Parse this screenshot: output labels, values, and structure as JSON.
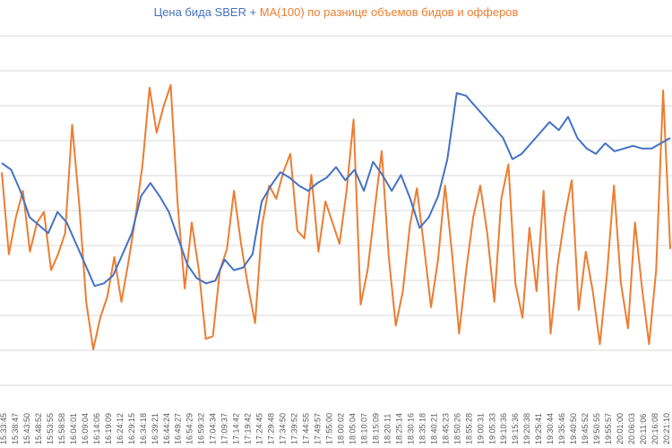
{
  "colors": {
    "bid_price": "#4472C4",
    "ma": "#ED7D31",
    "grid": "#D9D9D9",
    "axis_text": "#595959"
  },
  "chart_data": {
    "type": "line",
    "title_part1": "Цена бида SBER",
    "title_sep": " + ",
    "title_part2": "MA(100) по разнице объемов бидов и офферов",
    "gridlines": true,
    "legend": "none",
    "x_ticks": [
      "15:33:45",
      "15:38:47",
      "15:43:50",
      "15:48:52",
      "15:53:55",
      "15:58:58",
      "16:04:01",
      "16:09:04",
      "16:14:06",
      "16:19:09",
      "16:24:12",
      "16:29:15",
      "16:34:18",
      "16:39:21",
      "16:44:24",
      "16:49:27",
      "16:54:29",
      "16:59:32",
      "17:04:34",
      "17:09:37",
      "17:14:42",
      "17:19:42",
      "17:24:45",
      "17:29:48",
      "17:34:50",
      "17:39:52",
      "17:44:55",
      "17:49:57",
      "17:55:00",
      "18:00:02",
      "18:05:04",
      "18:10:07",
      "18:15:09",
      "18:20:11",
      "18:25:14",
      "18:30:16",
      "18:35:18",
      "18:40:21",
      "18:45:23",
      "18:50:26",
      "18:55:28",
      "19:00:31",
      "19:05:33",
      "19:10:36",
      "19:15:36",
      "19:20:38",
      "19:25:41",
      "19:30:44",
      "19:35:46",
      "19:40:50",
      "19:45:52",
      "19:50:55",
      "19:55:57",
      "20:01:00",
      "20:06:03",
      "20:11:06",
      "20:16:08",
      "20:21:10"
    ],
    "series": [
      {
        "color_key": "bid_price",
        "values": [
          0.705,
          0.68,
          0.6,
          0.5,
          0.47,
          0.44,
          0.52,
          0.48,
          0.4,
          0.32,
          0.24,
          0.25,
          0.28,
          0.36,
          0.44,
          0.58,
          0.63,
          0.58,
          0.52,
          0.42,
          0.32,
          0.27,
          0.25,
          0.26,
          0.34,
          0.3,
          0.31,
          0.36,
          0.56,
          0.62,
          0.67,
          0.65,
          0.62,
          0.6,
          0.63,
          0.65,
          0.69,
          0.64,
          0.68,
          0.6,
          0.71,
          0.66,
          0.6,
          0.66,
          0.57,
          0.46,
          0.5,
          0.58,
          0.72,
          0.97,
          0.96,
          0.92,
          0.88,
          0.84,
          0.8,
          0.72,
          0.74,
          0.78,
          0.82,
          0.86,
          0.83,
          0.88,
          0.8,
          0.76,
          0.74,
          0.78,
          0.75,
          0.76,
          0.77,
          0.76,
          0.76,
          0.78,
          0.8
        ]
      },
      {
        "color_key": "ma",
        "values": [
          0.67,
          0.36,
          0.5,
          0.6,
          0.37,
          0.48,
          0.52,
          0.3,
          0.36,
          0.44,
          0.85,
          0.55,
          0.18,
          0.0,
          0.12,
          0.2,
          0.35,
          0.18,
          0.33,
          0.5,
          0.7,
          0.99,
          0.82,
          0.92,
          1.0,
          0.55,
          0.23,
          0.48,
          0.3,
          0.04,
          0.05,
          0.3,
          0.38,
          0.6,
          0.4,
          0.24,
          0.1,
          0.47,
          0.62,
          0.57,
          0.67,
          0.74,
          0.45,
          0.42,
          0.66,
          0.37,
          0.56,
          0.48,
          0.4,
          0.6,
          0.87,
          0.17,
          0.3,
          0.53,
          0.75,
          0.35,
          0.09,
          0.22,
          0.47,
          0.61,
          0.39,
          0.16,
          0.34,
          0.62,
          0.36,
          0.06,
          0.3,
          0.5,
          0.62,
          0.44,
          0.18,
          0.57,
          0.7,
          0.25,
          0.12,
          0.46,
          0.22,
          0.6,
          0.06,
          0.32,
          0.5,
          0.64,
          0.15,
          0.37,
          0.22,
          0.02,
          0.28,
          0.62,
          0.25,
          0.08,
          0.48,
          0.23,
          0.02,
          0.3,
          0.98,
          0.38
        ]
      }
    ]
  }
}
